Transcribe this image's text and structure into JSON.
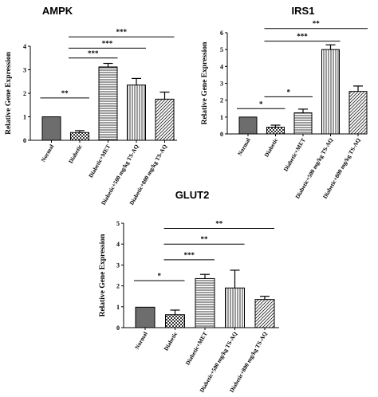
{
  "chart_data": [
    {
      "type": "bar",
      "title": "AMPK",
      "ylabel": "Relative Gene Expression",
      "categories": [
        "Normal",
        "Diabetic",
        "Diabetic+MET",
        "Diabetic+500 mg/kg TS-AQ",
        "Diabetic+800 mg/kg TS-AQ"
      ],
      "values": [
        1.0,
        0.33,
        3.12,
        2.35,
        1.75
      ],
      "errors": [
        0.0,
        0.08,
        0.15,
        0.28,
        0.3
      ],
      "ylim": [
        0,
        4
      ],
      "yticks": [
        "0",
        "1",
        "2",
        "3",
        "4"
      ],
      "patterns": [
        "solid",
        "checker",
        "horizontal",
        "vertical",
        "diagonal"
      ],
      "significance": [
        {
          "from": 0,
          "to": 1,
          "label": "**",
          "y": 1.8
        },
        {
          "from": 1,
          "to": 2,
          "label": "***",
          "y": 3.5
        },
        {
          "from": 1,
          "to": 3,
          "label": "***",
          "y": 3.92
        },
        {
          "from": 1,
          "to": 4,
          "label": "***",
          "y": 4.4
        }
      ]
    },
    {
      "type": "bar",
      "title": "IRS1",
      "ylabel": "Relative Gene Expression",
      "categories": [
        "Normal",
        "Diabetic",
        "Diabetic+MET",
        "Diabetic+500 mg/kg TS-AQ",
        "Diabetic+800 mg/kg TS-AQ"
      ],
      "values": [
        1.0,
        0.4,
        1.25,
        5.0,
        2.52
      ],
      "errors": [
        0.0,
        0.12,
        0.22,
        0.28,
        0.32
      ],
      "ylim": [
        0,
        6
      ],
      "yticks": [
        "0",
        "1",
        "2",
        "3",
        "4",
        "5",
        "6"
      ],
      "patterns": [
        "solid",
        "checker",
        "horizontal",
        "vertical",
        "diagonal"
      ],
      "significance": [
        {
          "from": 0,
          "to": 1,
          "label": "*",
          "y": 1.5
        },
        {
          "from": 1,
          "to": 2,
          "label": "*",
          "y": 2.2
        },
        {
          "from": 1,
          "to": 3,
          "label": "***",
          "y": 5.5
        },
        {
          "from": 1,
          "to": 4,
          "label": "**",
          "y": 6.25
        }
      ]
    },
    {
      "type": "bar",
      "title": "GLUT2",
      "ylabel": "Relative Gene Expression",
      "categories": [
        "Normal",
        "Diabetic",
        "Diabetic+MET",
        "Diabetic+500 mg/kg TS-AQ",
        "Diabetic+800 mg/kg TS-AQ"
      ],
      "values": [
        0.98,
        0.62,
        2.35,
        1.9,
        1.35
      ],
      "errors": [
        0.0,
        0.22,
        0.2,
        0.85,
        0.15
      ],
      "ylim": [
        0,
        5
      ],
      "yticks": [
        "0",
        "1",
        "2",
        "3",
        "4",
        "5"
      ],
      "patterns": [
        "solid",
        "checker",
        "horizontal",
        "vertical",
        "diagonal"
      ],
      "significance": [
        {
          "from": 0,
          "to": 1,
          "label": "*",
          "y": 2.25
        },
        {
          "from": 1,
          "to": 2,
          "label": "***",
          "y": 3.25
        },
        {
          "from": 1,
          "to": 3,
          "label": "**",
          "y": 4.0
        },
        {
          "from": 1,
          "to": 4,
          "label": "**",
          "y": 4.75
        }
      ]
    }
  ],
  "colors": {
    "solid_bar": "#6d6d6d",
    "outline": "#000000",
    "background": "#ffffff"
  }
}
